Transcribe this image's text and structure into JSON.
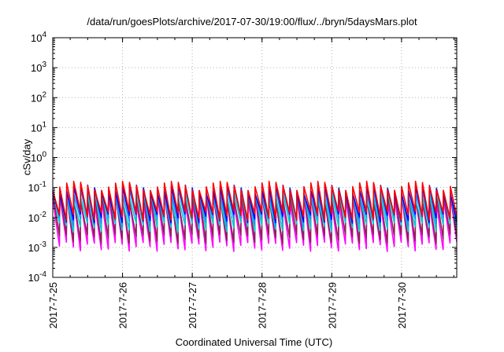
{
  "chart_data": {
    "type": "line",
    "title": "/data/run/goesPlots/archive/2017-07-30/19:00/flux/../bryn/5daysMars.plot",
    "xlabel": "Coordinated Universal Time (UTC)",
    "ylabel": "cSv/day",
    "yscale": "log",
    "ylim": [
      0.0001,
      10000
    ],
    "xlim": [
      "2017-07-25 00:00",
      "2017-07-30 19:00"
    ],
    "grid": true,
    "x_ticks": [
      "2017-7-25",
      "2017-7-26",
      "2017-7-27",
      "2017-7-28",
      "2017-7-29",
      "2017-7-30"
    ],
    "y_ticks": [
      {
        "base": "10",
        "exp": "-4"
      },
      {
        "base": "10",
        "exp": "-3"
      },
      {
        "base": "10",
        "exp": "-2"
      },
      {
        "base": "10",
        "exp": "-1"
      },
      {
        "base": "10",
        "exp": "0"
      },
      {
        "base": "10",
        "exp": "1"
      },
      {
        "base": "10",
        "exp": "2"
      },
      {
        "base": "10",
        "exp": "3"
      },
      {
        "base": "10",
        "exp": "4"
      }
    ],
    "period_hours": 2.4,
    "series": [
      {
        "color": "#ff00ff",
        "peak": 0.05,
        "trough": 0.00095
      },
      {
        "color": "#8b2252",
        "peak": 0.06,
        "trough": 0.0018
      },
      {
        "color": "#00cdcd",
        "peak": 0.07,
        "trough": 0.0045
      },
      {
        "color": "#1e90ff",
        "peak": 0.09,
        "trough": 0.007
      },
      {
        "color": "#0000ff",
        "peak": 0.11,
        "trough": 0.009
      },
      {
        "color": "#ff0000",
        "peak": 0.14,
        "trough": 0.011
      }
    ]
  }
}
